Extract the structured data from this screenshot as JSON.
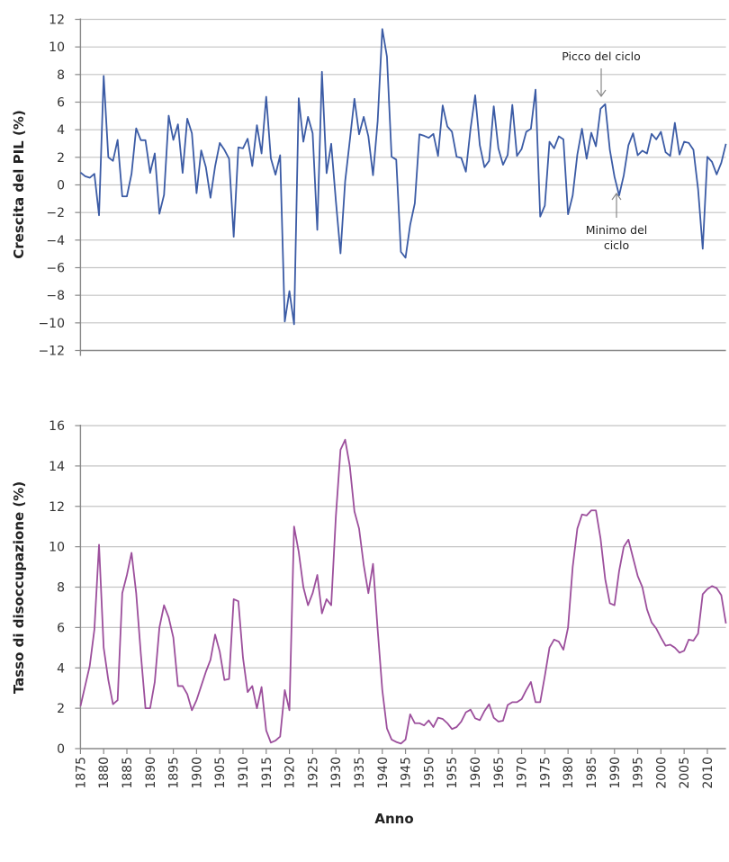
{
  "chart_data": [
    {
      "type": "line",
      "title": "",
      "xlabel": "",
      "ylabel": "Crescita del PIL (%)",
      "ylim": [
        -12,
        12
      ],
      "yticks": [
        12,
        10,
        8,
        6,
        4,
        2,
        0,
        -2,
        -4,
        -6,
        -8,
        -10,
        -12
      ],
      "xlim": [
        1875,
        2014
      ],
      "grid": true,
      "color": "#3b5ba5",
      "x_start": 1875,
      "values": [
        0.9,
        0.63,
        0.52,
        0.8,
        -2.2,
        7.9,
        2.0,
        1.74,
        3.26,
        -0.83,
        -0.83,
        0.8,
        4.1,
        3.24,
        3.24,
        0.87,
        2.28,
        -2.09,
        -0.72,
        5.02,
        3.26,
        4.39,
        0.87,
        4.8,
        3.74,
        -0.6,
        2.5,
        1.3,
        -0.93,
        1.35,
        3.04,
        2.54,
        1.9,
        -3.76,
        2.72,
        2.65,
        3.35,
        1.37,
        4.33,
        2.28,
        6.39,
        1.93,
        0.74,
        2.15,
        -9.9,
        -7.7,
        -10.1,
        6.28,
        3.13,
        4.93,
        3.74,
        -3.26,
        8.2,
        0.85,
        2.98,
        -1.15,
        -4.96,
        0.26,
        3.2,
        6.24,
        3.67,
        4.93,
        3.52,
        0.7,
        4.6,
        11.3,
        9.3,
        2.04,
        1.83,
        -4.85,
        -5.28,
        -2.9,
        -1.33,
        3.67,
        3.56,
        3.41,
        3.7,
        2.1,
        5.76,
        4.24,
        3.85,
        2.04,
        1.96,
        0.96,
        4.07,
        6.5,
        2.87,
        1.28,
        1.74,
        5.7,
        2.65,
        1.46,
        2.17,
        5.8,
        2.1,
        2.6,
        3.85,
        4.07,
        6.9,
        -2.3,
        -1.5,
        3.13,
        2.65,
        3.52,
        3.3,
        -2.13,
        -0.76,
        2.2,
        4.07,
        1.9,
        3.78,
        2.8,
        5.52,
        5.85,
        2.54,
        0.59,
        -0.76,
        0.7,
        2.87,
        3.74,
        2.15,
        2.48,
        2.28,
        3.7,
        3.3,
        3.85,
        2.37,
        2.1,
        4.5,
        2.2,
        3.13,
        3.04,
        2.54,
        -0.3,
        -4.63,
        2.04,
        1.67,
        0.76,
        1.6,
        2.98
      ],
      "annotations": [
        {
          "text": "Picco del ciclo",
          "year": 1988,
          "value": 5.85,
          "arrow": "down"
        },
        {
          "text_lines": [
            "Minimo del",
            "ciclo"
          ],
          "year": 1991,
          "value": -0.76,
          "arrow": "up"
        }
      ]
    },
    {
      "type": "line",
      "title": "",
      "xlabel": "Anno",
      "ylabel": "Tasso di disoccupazione (%)",
      "ylim": [
        0,
        16
      ],
      "yticks": [
        16,
        14,
        12,
        10,
        8,
        6,
        4,
        2,
        0
      ],
      "xlim": [
        1875,
        2014
      ],
      "xticks": [
        "1875",
        "1880",
        "1885",
        "1890",
        "1895",
        "1900",
        "1905",
        "1910",
        "1915",
        "1920",
        "1925",
        "1930",
        "1935",
        "1940",
        "1945",
        "1950",
        "1955",
        "1960",
        "1965",
        "1970",
        "1975",
        "1980",
        "1985",
        "1990",
        "1995",
        "2000",
        "2005",
        "2010"
      ],
      "grid": true,
      "color": "#9c4f9c",
      "x_start": 1875,
      "values": [
        2.1,
        3.1,
        4.1,
        5.9,
        10.1,
        5.0,
        3.4,
        2.2,
        2.4,
        7.7,
        8.6,
        9.7,
        7.7,
        4.7,
        2.0,
        2.0,
        3.3,
        6.0,
        7.1,
        6.5,
        5.5,
        3.1,
        3.1,
        2.7,
        1.9,
        2.4,
        3.1,
        3.8,
        4.4,
        5.65,
        4.8,
        3.4,
        3.45,
        7.4,
        7.3,
        4.5,
        2.8,
        3.1,
        2.0,
        3.05,
        0.9,
        0.3,
        0.4,
        0.6,
        2.9,
        1.9,
        11.0,
        9.75,
        8.0,
        7.1,
        7.7,
        8.6,
        6.7,
        7.4,
        7.1,
        11.5,
        14.8,
        15.3,
        14.0,
        11.75,
        10.9,
        9.1,
        7.7,
        9.15,
        5.9,
        2.9,
        1.0,
        0.45,
        0.33,
        0.25,
        0.45,
        1.7,
        1.26,
        1.26,
        1.15,
        1.4,
        1.07,
        1.53,
        1.47,
        1.26,
        0.97,
        1.07,
        1.34,
        1.8,
        1.93,
        1.5,
        1.41,
        1.86,
        2.2,
        1.53,
        1.34,
        1.38,
        2.16,
        2.3,
        2.3,
        2.45,
        2.9,
        3.3,
        2.3,
        2.3,
        3.6,
        5.0,
        5.4,
        5.3,
        4.9,
        6.0,
        9.0,
        10.9,
        11.6,
        11.55,
        11.8,
        11.8,
        10.4,
        8.4,
        7.2,
        7.1,
        8.8,
        10.0,
        10.35,
        9.45,
        8.55,
        8.0,
        6.9,
        6.25,
        5.95,
        5.5,
        5.1,
        5.15,
        5.0,
        4.75,
        4.85,
        5.4,
        5.35,
        5.7,
        7.65,
        7.9,
        8.05,
        7.95,
        7.6,
        6.2
      ]
    }
  ]
}
